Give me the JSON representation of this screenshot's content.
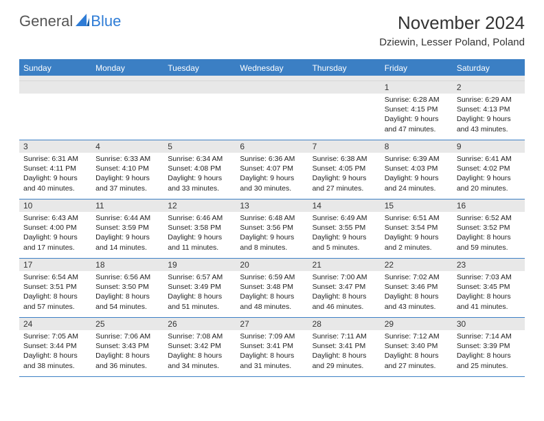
{
  "brand": {
    "part1": "General",
    "part2": "Blue"
  },
  "title": "November 2024",
  "location": "Dziewin, Lesser Poland, Poland",
  "colors": {
    "header_blue": "#3b7fc4",
    "grey_bar": "#e8e8e8",
    "text": "#222222",
    "logo_blue": "#2e7cd6",
    "logo_grey": "#555555",
    "white": "#ffffff"
  },
  "typography": {
    "title_fontsize": 26,
    "location_fontsize": 15,
    "dow_fontsize": 12,
    "daynum_fontsize": 12,
    "body_fontsize": 10.5
  },
  "daysOfWeek": [
    "Sunday",
    "Monday",
    "Tuesday",
    "Wednesday",
    "Thursday",
    "Friday",
    "Saturday"
  ],
  "weeks": [
    [
      {
        "n": "",
        "sunrise": "",
        "sunset": "",
        "daylight": ""
      },
      {
        "n": "",
        "sunrise": "",
        "sunset": "",
        "daylight": ""
      },
      {
        "n": "",
        "sunrise": "",
        "sunset": "",
        "daylight": ""
      },
      {
        "n": "",
        "sunrise": "",
        "sunset": "",
        "daylight": ""
      },
      {
        "n": "",
        "sunrise": "",
        "sunset": "",
        "daylight": ""
      },
      {
        "n": "1",
        "sunrise": "Sunrise: 6:28 AM",
        "sunset": "Sunset: 4:15 PM",
        "daylight": "Daylight: 9 hours and 47 minutes."
      },
      {
        "n": "2",
        "sunrise": "Sunrise: 6:29 AM",
        "sunset": "Sunset: 4:13 PM",
        "daylight": "Daylight: 9 hours and 43 minutes."
      }
    ],
    [
      {
        "n": "3",
        "sunrise": "Sunrise: 6:31 AM",
        "sunset": "Sunset: 4:11 PM",
        "daylight": "Daylight: 9 hours and 40 minutes."
      },
      {
        "n": "4",
        "sunrise": "Sunrise: 6:33 AM",
        "sunset": "Sunset: 4:10 PM",
        "daylight": "Daylight: 9 hours and 37 minutes."
      },
      {
        "n": "5",
        "sunrise": "Sunrise: 6:34 AM",
        "sunset": "Sunset: 4:08 PM",
        "daylight": "Daylight: 9 hours and 33 minutes."
      },
      {
        "n": "6",
        "sunrise": "Sunrise: 6:36 AM",
        "sunset": "Sunset: 4:07 PM",
        "daylight": "Daylight: 9 hours and 30 minutes."
      },
      {
        "n": "7",
        "sunrise": "Sunrise: 6:38 AM",
        "sunset": "Sunset: 4:05 PM",
        "daylight": "Daylight: 9 hours and 27 minutes."
      },
      {
        "n": "8",
        "sunrise": "Sunrise: 6:39 AM",
        "sunset": "Sunset: 4:03 PM",
        "daylight": "Daylight: 9 hours and 24 minutes."
      },
      {
        "n": "9",
        "sunrise": "Sunrise: 6:41 AM",
        "sunset": "Sunset: 4:02 PM",
        "daylight": "Daylight: 9 hours and 20 minutes."
      }
    ],
    [
      {
        "n": "10",
        "sunrise": "Sunrise: 6:43 AM",
        "sunset": "Sunset: 4:00 PM",
        "daylight": "Daylight: 9 hours and 17 minutes."
      },
      {
        "n": "11",
        "sunrise": "Sunrise: 6:44 AM",
        "sunset": "Sunset: 3:59 PM",
        "daylight": "Daylight: 9 hours and 14 minutes."
      },
      {
        "n": "12",
        "sunrise": "Sunrise: 6:46 AM",
        "sunset": "Sunset: 3:58 PM",
        "daylight": "Daylight: 9 hours and 11 minutes."
      },
      {
        "n": "13",
        "sunrise": "Sunrise: 6:48 AM",
        "sunset": "Sunset: 3:56 PM",
        "daylight": "Daylight: 9 hours and 8 minutes."
      },
      {
        "n": "14",
        "sunrise": "Sunrise: 6:49 AM",
        "sunset": "Sunset: 3:55 PM",
        "daylight": "Daylight: 9 hours and 5 minutes."
      },
      {
        "n": "15",
        "sunrise": "Sunrise: 6:51 AM",
        "sunset": "Sunset: 3:54 PM",
        "daylight": "Daylight: 9 hours and 2 minutes."
      },
      {
        "n": "16",
        "sunrise": "Sunrise: 6:52 AM",
        "sunset": "Sunset: 3:52 PM",
        "daylight": "Daylight: 8 hours and 59 minutes."
      }
    ],
    [
      {
        "n": "17",
        "sunrise": "Sunrise: 6:54 AM",
        "sunset": "Sunset: 3:51 PM",
        "daylight": "Daylight: 8 hours and 57 minutes."
      },
      {
        "n": "18",
        "sunrise": "Sunrise: 6:56 AM",
        "sunset": "Sunset: 3:50 PM",
        "daylight": "Daylight: 8 hours and 54 minutes."
      },
      {
        "n": "19",
        "sunrise": "Sunrise: 6:57 AM",
        "sunset": "Sunset: 3:49 PM",
        "daylight": "Daylight: 8 hours and 51 minutes."
      },
      {
        "n": "20",
        "sunrise": "Sunrise: 6:59 AM",
        "sunset": "Sunset: 3:48 PM",
        "daylight": "Daylight: 8 hours and 48 minutes."
      },
      {
        "n": "21",
        "sunrise": "Sunrise: 7:00 AM",
        "sunset": "Sunset: 3:47 PM",
        "daylight": "Daylight: 8 hours and 46 minutes."
      },
      {
        "n": "22",
        "sunrise": "Sunrise: 7:02 AM",
        "sunset": "Sunset: 3:46 PM",
        "daylight": "Daylight: 8 hours and 43 minutes."
      },
      {
        "n": "23",
        "sunrise": "Sunrise: 7:03 AM",
        "sunset": "Sunset: 3:45 PM",
        "daylight": "Daylight: 8 hours and 41 minutes."
      }
    ],
    [
      {
        "n": "24",
        "sunrise": "Sunrise: 7:05 AM",
        "sunset": "Sunset: 3:44 PM",
        "daylight": "Daylight: 8 hours and 38 minutes."
      },
      {
        "n": "25",
        "sunrise": "Sunrise: 7:06 AM",
        "sunset": "Sunset: 3:43 PM",
        "daylight": "Daylight: 8 hours and 36 minutes."
      },
      {
        "n": "26",
        "sunrise": "Sunrise: 7:08 AM",
        "sunset": "Sunset: 3:42 PM",
        "daylight": "Daylight: 8 hours and 34 minutes."
      },
      {
        "n": "27",
        "sunrise": "Sunrise: 7:09 AM",
        "sunset": "Sunset: 3:41 PM",
        "daylight": "Daylight: 8 hours and 31 minutes."
      },
      {
        "n": "28",
        "sunrise": "Sunrise: 7:11 AM",
        "sunset": "Sunset: 3:41 PM",
        "daylight": "Daylight: 8 hours and 29 minutes."
      },
      {
        "n": "29",
        "sunrise": "Sunrise: 7:12 AM",
        "sunset": "Sunset: 3:40 PM",
        "daylight": "Daylight: 8 hours and 27 minutes."
      },
      {
        "n": "30",
        "sunrise": "Sunrise: 7:14 AM",
        "sunset": "Sunset: 3:39 PM",
        "daylight": "Daylight: 8 hours and 25 minutes."
      }
    ]
  ]
}
